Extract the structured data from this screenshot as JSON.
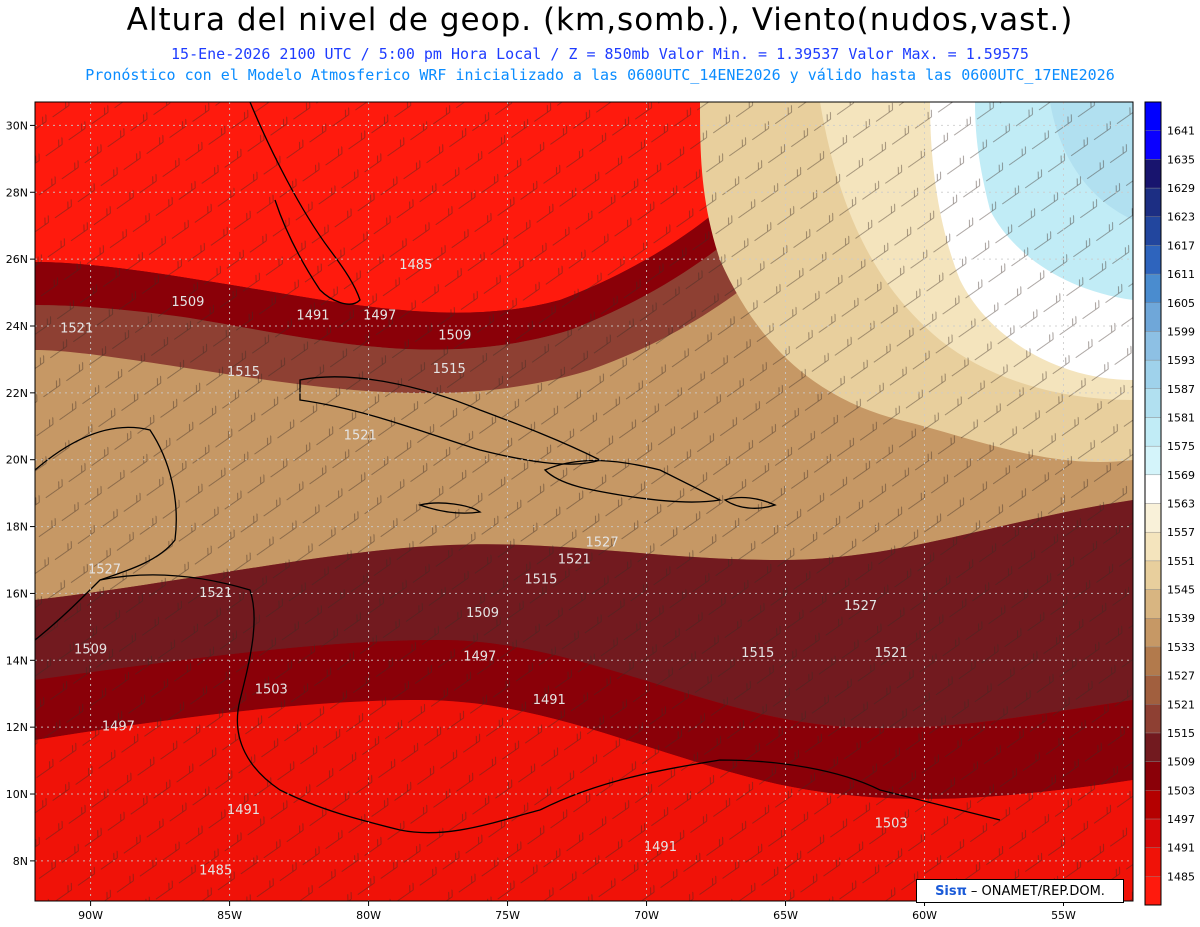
{
  "header": {
    "title": "Altura del nivel de geop. (km,somb.), Viento(nudos,vast.)",
    "subtitle1": "15-Ene-2026  2100 UTC / 5:00 pm Hora Local / Z = 850mb    Valor Min. = 1.39537  Valor Max. = 1.59575",
    "subtitle2": "Pronóstico con el Modelo Atmosferico WRF inicializado a las 0600UTC_14ENE2026 y válido hasta las  0600UTC_17ENE2026"
  },
  "map": {
    "lon_range": [
      -92,
      -52.5
    ],
    "lat_range": [
      6.8,
      30.7
    ],
    "lon_ticks": [
      {
        "v": -90,
        "label": "90W"
      },
      {
        "v": -85,
        "label": "85W"
      },
      {
        "v": -80,
        "label": "80W"
      },
      {
        "v": -75,
        "label": "75W"
      },
      {
        "v": -70,
        "label": "70W"
      },
      {
        "v": -65,
        "label": "65W"
      },
      {
        "v": -60,
        "label": "60W"
      },
      {
        "v": -55,
        "label": "55W"
      }
    ],
    "lat_ticks": [
      {
        "v": 30,
        "label": "30N"
      },
      {
        "v": 28,
        "label": "28N"
      },
      {
        "v": 26,
        "label": "26N"
      },
      {
        "v": 24,
        "label": "24N"
      },
      {
        "v": 22,
        "label": "22N"
      },
      {
        "v": 20,
        "label": "20N"
      },
      {
        "v": 18,
        "label": "18N"
      },
      {
        "v": 16,
        "label": "16N"
      },
      {
        "v": 14,
        "label": "14N"
      },
      {
        "v": 12,
        "label": "12N"
      },
      {
        "v": 10,
        "label": "10N"
      },
      {
        "v": 8,
        "label": "8N"
      }
    ],
    "contour_labels": [
      {
        "lon": -86.5,
        "lat": 24.6,
        "text": "1509"
      },
      {
        "lon": -90.5,
        "lat": 23.8,
        "text": "1521"
      },
      {
        "lon": -84.5,
        "lat": 22.5,
        "text": "1515"
      },
      {
        "lon": -82.0,
        "lat": 24.2,
        "text": "1491"
      },
      {
        "lon": -79.6,
        "lat": 24.2,
        "text": "1497"
      },
      {
        "lon": -78.3,
        "lat": 25.7,
        "text": "1485"
      },
      {
        "lon": -76.9,
        "lat": 23.6,
        "text": "1509"
      },
      {
        "lon": -77.1,
        "lat": 22.6,
        "text": "1515"
      },
      {
        "lon": -80.3,
        "lat": 20.6,
        "text": "1521"
      },
      {
        "lon": -89.5,
        "lat": 16.6,
        "text": "1527"
      },
      {
        "lon": -85.5,
        "lat": 15.9,
        "text": "1521"
      },
      {
        "lon": -90.0,
        "lat": 14.2,
        "text": "1509"
      },
      {
        "lon": -89.0,
        "lat": 11.9,
        "text": "1497"
      },
      {
        "lon": -83.5,
        "lat": 13.0,
        "text": "1503"
      },
      {
        "lon": -76.0,
        "lat": 14.0,
        "text": "1497"
      },
      {
        "lon": -73.5,
        "lat": 12.7,
        "text": "1491"
      },
      {
        "lon": -75.9,
        "lat": 15.3,
        "text": "1509"
      },
      {
        "lon": -73.8,
        "lat": 16.3,
        "text": "1515"
      },
      {
        "lon": -72.6,
        "lat": 16.9,
        "text": "1521"
      },
      {
        "lon": -71.6,
        "lat": 17.4,
        "text": "1527"
      },
      {
        "lon": -66.0,
        "lat": 14.1,
        "text": "1515"
      },
      {
        "lon": -62.3,
        "lat": 15.5,
        "text": "1527"
      },
      {
        "lon": -61.2,
        "lat": 14.1,
        "text": "1521"
      },
      {
        "lon": -84.5,
        "lat": 9.4,
        "text": "1491"
      },
      {
        "lon": -85.5,
        "lat": 7.6,
        "text": "1485"
      },
      {
        "lon": -69.5,
        "lat": 8.3,
        "text": "1491"
      },
      {
        "lon": -61.2,
        "lat": 9.0,
        "text": "1503"
      }
    ]
  },
  "colorbar": {
    "levels": [
      "1485",
      "1491",
      "1497",
      "1503",
      "1509",
      "1515",
      "1521",
      "1527",
      "1533",
      "1539",
      "1545",
      "1551",
      "1557",
      "1563",
      "1569",
      "1575",
      "1581",
      "1587",
      "1593",
      "1599",
      "1605",
      "1611",
      "1617",
      "1623",
      "1629",
      "1635",
      "1641"
    ],
    "colors": [
      "#ff1a0d",
      "#f01208",
      "#d80808",
      "#b40000",
      "#8a0008",
      "#721a1f",
      "#8e4033",
      "#a15f3e",
      "#b27a4c",
      "#c69865",
      "#d8b581",
      "#e8cf9d",
      "#f4e4bd",
      "#f9f1d9",
      "#ffffff",
      "#d4f4fa",
      "#c1ecf6",
      "#b1e0f0",
      "#9fd2eb",
      "#8dc0e4",
      "#6fa7d9",
      "#4a8ccf",
      "#2e64bd",
      "#22469e",
      "#1c2e83",
      "#18146e",
      "#0a00ff",
      "#0000ff"
    ]
  },
  "credit": {
    "logo": "Sisπ",
    "text": "– ONAMET/REP.DOM."
  }
}
